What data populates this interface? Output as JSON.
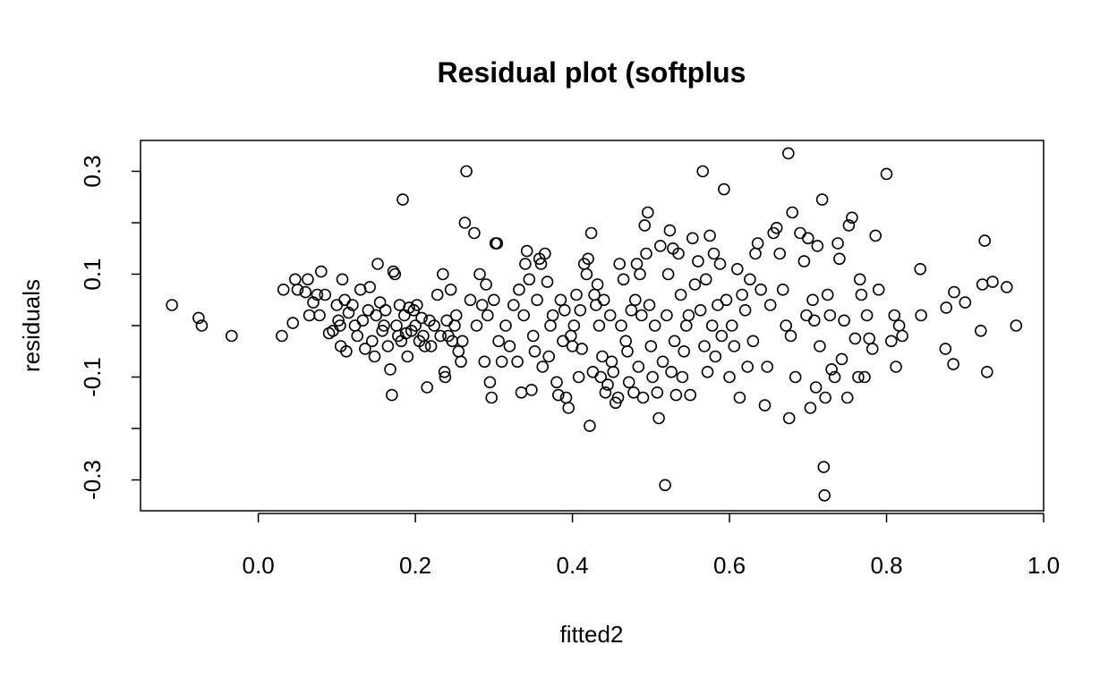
{
  "chart_data": {
    "type": "scatter",
    "title": "Residual plot (softplus",
    "xlabel": "fitted2",
    "ylabel": "residuals",
    "xlim": [
      -0.15,
      1.0
    ],
    "ylim": [
      -0.36,
      0.36
    ],
    "xticks": [
      0.0,
      0.2,
      0.4,
      0.6,
      0.8,
      1.0
    ],
    "xtick_labels": [
      "0.0",
      "0.2",
      "0.4",
      "0.6",
      "0.8",
      "1.0"
    ],
    "yticks": [
      -0.3,
      -0.2,
      -0.1,
      0.0,
      0.1,
      0.2,
      0.3
    ],
    "ytick_labels": [
      "-0.3",
      "",
      "-0.1",
      "",
      "0.1",
      "",
      "0.3"
    ],
    "grid": false,
    "marker": "open-circle",
    "points": [
      [
        -0.11,
        0.04
      ],
      [
        -0.076,
        0.015
      ],
      [
        -0.072,
        0.0
      ],
      [
        -0.034,
        -0.02
      ],
      [
        0.03,
        -0.02
      ],
      [
        0.032,
        0.07
      ],
      [
        0.044,
        0.005
      ],
      [
        0.047,
        0.09
      ],
      [
        0.05,
        0.07
      ],
      [
        0.06,
        0.065
      ],
      [
        0.063,
        0.09
      ],
      [
        0.065,
        0.02
      ],
      [
        0.07,
        0.045
      ],
      [
        0.075,
        0.06
      ],
      [
        0.078,
        0.02
      ],
      [
        0.08,
        0.105
      ],
      [
        0.085,
        0.06
      ],
      [
        0.09,
        -0.015
      ],
      [
        0.095,
        -0.01
      ],
      [
        0.1,
        0.04
      ],
      [
        0.102,
        0.01
      ],
      [
        0.104,
        0.0
      ],
      [
        0.105,
        -0.04
      ],
      [
        0.107,
        0.09
      ],
      [
        0.11,
        0.05
      ],
      [
        0.112,
        -0.05
      ],
      [
        0.115,
        0.025
      ],
      [
        0.12,
        0.04
      ],
      [
        0.123,
        0.0
      ],
      [
        0.126,
        -0.02
      ],
      [
        0.13,
        0.07
      ],
      [
        0.133,
        0.01
      ],
      [
        0.136,
        -0.045
      ],
      [
        0.14,
        0.03
      ],
      [
        0.142,
        0.075
      ],
      [
        0.145,
        -0.03
      ],
      [
        0.148,
        -0.06
      ],
      [
        0.15,
        0.02
      ],
      [
        0.152,
        0.12
      ],
      [
        0.155,
        0.045
      ],
      [
        0.158,
        -0.01
      ],
      [
        0.16,
        0.0
      ],
      [
        0.162,
        0.03
      ],
      [
        0.165,
        -0.04
      ],
      [
        0.168,
        -0.085
      ],
      [
        0.17,
        -0.135
      ],
      [
        0.172,
        0.105
      ],
      [
        0.174,
        0.1
      ],
      [
        0.176,
        0.0
      ],
      [
        0.178,
        -0.02
      ],
      [
        0.18,
        0.04
      ],
      [
        0.182,
        -0.03
      ],
      [
        0.184,
        0.245
      ],
      [
        0.186,
        0.02
      ],
      [
        0.188,
        -0.015
      ],
      [
        0.19,
        -0.06
      ],
      [
        0.192,
        0.035
      ],
      [
        0.195,
        -0.01
      ],
      [
        0.198,
        0.03
      ],
      [
        0.2,
        0.0
      ],
      [
        0.202,
        0.04
      ],
      [
        0.205,
        -0.03
      ],
      [
        0.208,
        0.015
      ],
      [
        0.21,
        -0.02
      ],
      [
        0.212,
        -0.04
      ],
      [
        0.215,
        -0.12
      ],
      [
        0.218,
        0.01
      ],
      [
        0.22,
        -0.04
      ],
      [
        0.224,
        0.0
      ],
      [
        0.228,
        0.06
      ],
      [
        0.232,
        -0.02
      ],
      [
        0.235,
        0.1
      ],
      [
        0.237,
        -0.09
      ],
      [
        0.238,
        -0.1
      ],
      [
        0.24,
        0.01
      ],
      [
        0.242,
        -0.02
      ],
      [
        0.245,
        0.07
      ],
      [
        0.247,
        -0.03
      ],
      [
        0.25,
        0.0
      ],
      [
        0.252,
        0.02
      ],
      [
        0.255,
        -0.05
      ],
      [
        0.258,
        -0.07
      ],
      [
        0.26,
        -0.03
      ],
      [
        0.263,
        0.2
      ],
      [
        0.265,
        0.3
      ],
      [
        0.27,
        0.05
      ],
      [
        0.275,
        0.18
      ],
      [
        0.278,
        0.0
      ],
      [
        0.282,
        0.1
      ],
      [
        0.285,
        0.04
      ],
      [
        0.288,
        -0.07
      ],
      [
        0.29,
        0.08
      ],
      [
        0.292,
        0.02
      ],
      [
        0.295,
        -0.11
      ],
      [
        0.297,
        -0.14
      ],
      [
        0.3,
        0.05
      ],
      [
        0.302,
        0.16
      ],
      [
        0.304,
        0.16
      ],
      [
        0.306,
        -0.03
      ],
      [
        0.31,
        -0.07
      ],
      [
        0.315,
        0.0
      ],
      [
        0.32,
        -0.04
      ],
      [
        0.325,
        0.04
      ],
      [
        0.33,
        -0.07
      ],
      [
        0.332,
        0.07
      ],
      [
        0.335,
        -0.13
      ],
      [
        0.338,
        0.02
      ],
      [
        0.34,
        0.12
      ],
      [
        0.342,
        0.145
      ],
      [
        0.345,
        0.09
      ],
      [
        0.348,
        -0.125
      ],
      [
        0.35,
        -0.02
      ],
      [
        0.352,
        -0.05
      ],
      [
        0.355,
        0.05
      ],
      [
        0.358,
        0.13
      ],
      [
        0.36,
        0.12
      ],
      [
        0.362,
        -0.08
      ],
      [
        0.365,
        0.14
      ],
      [
        0.368,
        0.085
      ],
      [
        0.37,
        -0.06
      ],
      [
        0.372,
        0.0
      ],
      [
        0.375,
        0.02
      ],
      [
        0.38,
        -0.11
      ],
      [
        0.382,
        -0.135
      ],
      [
        0.385,
        0.05
      ],
      [
        0.388,
        -0.03
      ],
      [
        0.39,
        0.03
      ],
      [
        0.392,
        -0.14
      ],
      [
        0.395,
        -0.16
      ],
      [
        0.398,
        -0.02
      ],
      [
        0.4,
        -0.04
      ],
      [
        0.402,
        0.0
      ],
      [
        0.405,
        0.06
      ],
      [
        0.408,
        -0.1
      ],
      [
        0.41,
        0.03
      ],
      [
        0.412,
        -0.045
      ],
      [
        0.415,
        0.12
      ],
      [
        0.418,
        0.1
      ],
      [
        0.42,
        0.13
      ],
      [
        0.422,
        -0.195
      ],
      [
        0.424,
        0.18
      ],
      [
        0.426,
        -0.09
      ],
      [
        0.428,
        0.06
      ],
      [
        0.43,
        0.04
      ],
      [
        0.432,
        0.08
      ],
      [
        0.434,
        0.0
      ],
      [
        0.436,
        -0.1
      ],
      [
        0.438,
        -0.06
      ],
      [
        0.44,
        0.05
      ],
      [
        0.442,
        -0.13
      ],
      [
        0.445,
        -0.115
      ],
      [
        0.448,
        0.02
      ],
      [
        0.45,
        -0.07
      ],
      [
        0.452,
        -0.09
      ],
      [
        0.455,
        -0.15
      ],
      [
        0.458,
        -0.14
      ],
      [
        0.46,
        0.12
      ],
      [
        0.462,
        0.0
      ],
      [
        0.465,
        0.09
      ],
      [
        0.468,
        -0.03
      ],
      [
        0.47,
        -0.05
      ],
      [
        0.472,
        -0.11
      ],
      [
        0.475,
        0.03
      ],
      [
        0.478,
        -0.13
      ],
      [
        0.48,
        0.05
      ],
      [
        0.482,
        0.12
      ],
      [
        0.484,
        -0.08
      ],
      [
        0.486,
        0.1
      ],
      [
        0.488,
        0.02
      ],
      [
        0.49,
        -0.14
      ],
      [
        0.492,
        0.195
      ],
      [
        0.494,
        0.14
      ],
      [
        0.496,
        0.22
      ],
      [
        0.498,
        0.04
      ],
      [
        0.5,
        -0.04
      ],
      [
        0.502,
        -0.1
      ],
      [
        0.505,
        0.0
      ],
      [
        0.508,
        -0.13
      ],
      [
        0.51,
        -0.18
      ],
      [
        0.512,
        0.155
      ],
      [
        0.515,
        -0.07
      ],
      [
        0.518,
        -0.31
      ],
      [
        0.52,
        0.02
      ],
      [
        0.522,
        0.1
      ],
      [
        0.524,
        0.185
      ],
      [
        0.526,
        -0.09
      ],
      [
        0.528,
        0.15
      ],
      [
        0.53,
        -0.03
      ],
      [
        0.532,
        -0.135
      ],
      [
        0.535,
        0.14
      ],
      [
        0.538,
        0.06
      ],
      [
        0.54,
        -0.1
      ],
      [
        0.542,
        -0.05
      ],
      [
        0.545,
        0.0
      ],
      [
        0.548,
        0.02
      ],
      [
        0.55,
        -0.135
      ],
      [
        0.553,
        0.17
      ],
      [
        0.556,
        0.08
      ],
      [
        0.56,
        0.125
      ],
      [
        0.563,
        0.03
      ],
      [
        0.566,
        0.3
      ],
      [
        0.568,
        -0.04
      ],
      [
        0.57,
        0.09
      ],
      [
        0.572,
        -0.09
      ],
      [
        0.575,
        0.175
      ],
      [
        0.578,
        0.0
      ],
      [
        0.58,
        0.14
      ],
      [
        0.582,
        -0.06
      ],
      [
        0.585,
        0.04
      ],
      [
        0.588,
        0.12
      ],
      [
        0.59,
        -0.02
      ],
      [
        0.593,
        0.265
      ],
      [
        0.596,
        0.05
      ],
      [
        0.6,
        -0.1
      ],
      [
        0.603,
        0.0
      ],
      [
        0.606,
        -0.04
      ],
      [
        0.61,
        0.11
      ],
      [
        0.613,
        -0.14
      ],
      [
        0.616,
        0.06
      ],
      [
        0.62,
        0.03
      ],
      [
        0.623,
        -0.08
      ],
      [
        0.626,
        0.09
      ],
      [
        0.63,
        -0.03
      ],
      [
        0.633,
        0.14
      ],
      [
        0.636,
        0.16
      ],
      [
        0.64,
        0.07
      ],
      [
        0.645,
        -0.155
      ],
      [
        0.648,
        -0.08
      ],
      [
        0.652,
        0.04
      ],
      [
        0.656,
        0.18
      ],
      [
        0.66,
        0.19
      ],
      [
        0.664,
        0.14
      ],
      [
        0.668,
        0.07
      ],
      [
        0.672,
        0.0
      ],
      [
        0.675,
        0.335
      ],
      [
        0.676,
        -0.18
      ],
      [
        0.678,
        -0.02
      ],
      [
        0.68,
        0.22
      ],
      [
        0.684,
        -0.1
      ],
      [
        0.69,
        0.18
      ],
      [
        0.695,
        0.125
      ],
      [
        0.698,
        0.02
      ],
      [
        0.7,
        0.17
      ],
      [
        0.703,
        -0.16
      ],
      [
        0.706,
        0.05
      ],
      [
        0.708,
        0.01
      ],
      [
        0.71,
        -0.12
      ],
      [
        0.712,
        0.155
      ],
      [
        0.715,
        -0.04
      ],
      [
        0.718,
        0.245
      ],
      [
        0.72,
        -0.275
      ],
      [
        0.721,
        -0.33
      ],
      [
        0.722,
        -0.14
      ],
      [
        0.725,
        0.06
      ],
      [
        0.728,
        0.02
      ],
      [
        0.73,
        -0.085
      ],
      [
        0.734,
        -0.1
      ],
      [
        0.738,
        0.16
      ],
      [
        0.74,
        0.13
      ],
      [
        0.743,
        -0.065
      ],
      [
        0.746,
        0.01
      ],
      [
        0.75,
        -0.14
      ],
      [
        0.752,
        0.195
      ],
      [
        0.756,
        0.21
      ],
      [
        0.76,
        -0.025
      ],
      [
        0.764,
        -0.1
      ],
      [
        0.766,
        0.09
      ],
      [
        0.768,
        0.06
      ],
      [
        0.772,
        -0.1
      ],
      [
        0.775,
        0.02
      ],
      [
        0.778,
        -0.025
      ],
      [
        0.782,
        -0.045
      ],
      [
        0.786,
        0.175
      ],
      [
        0.79,
        0.07
      ],
      [
        0.8,
        0.295
      ],
      [
        0.806,
        -0.03
      ],
      [
        0.81,
        0.02
      ],
      [
        0.812,
        -0.08
      ],
      [
        0.816,
        0.0
      ],
      [
        0.82,
        -0.02
      ],
      [
        0.843,
        0.11
      ],
      [
        0.844,
        0.02
      ],
      [
        0.875,
        -0.045
      ],
      [
        0.876,
        0.035
      ],
      [
        0.885,
        -0.075
      ],
      [
        0.886,
        0.065
      ],
      [
        0.9,
        0.045
      ],
      [
        0.92,
        -0.01
      ],
      [
        0.922,
        0.08
      ],
      [
        0.925,
        0.165
      ],
      [
        0.928,
        -0.09
      ],
      [
        0.935,
        0.085
      ],
      [
        0.953,
        0.075
      ],
      [
        0.965,
        0.0
      ]
    ]
  }
}
